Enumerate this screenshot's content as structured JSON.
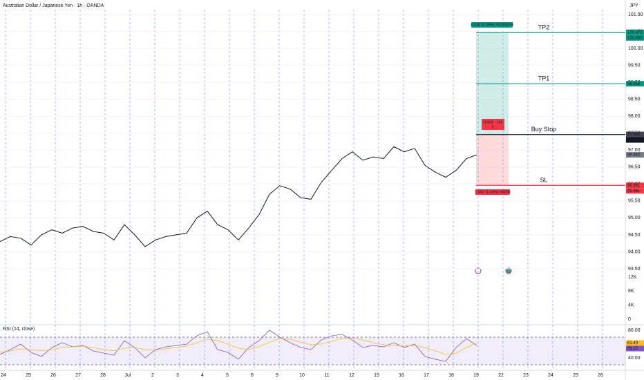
{
  "header": {
    "title": "Australian Dollar / Japanese Yen · 1h · OANDA",
    "currency": "JPY"
  },
  "date_axis": [
    "24",
    "25",
    "26",
    "27",
    "28",
    "Jul",
    "2",
    "3",
    "4",
    "5",
    "8",
    "9",
    "10",
    "11",
    "12",
    "15",
    "16",
    "17",
    "18",
    "19",
    "22",
    "23",
    "24",
    "25",
    "26"
  ],
  "chart_data": [
    {
      "type": "line",
      "series": [
        {
          "color": "#131722",
          "values": [
            94.3,
            94.45,
            94.4,
            94.2,
            94.5,
            94.65,
            94.55,
            94.7,
            94.75,
            94.6,
            94.55,
            94.35,
            94.8,
            94.5,
            94.15,
            94.35,
            94.45,
            94.5,
            94.55,
            95.0,
            95.2,
            94.8,
            94.65,
            94.35,
            94.7,
            95.1,
            95.7,
            95.95,
            95.85,
            95.6,
            95.55,
            96.05,
            96.4,
            96.75,
            96.95,
            96.7,
            96.8,
            96.75,
            97.1,
            96.95,
            97.05,
            96.55,
            96.35,
            96.2,
            96.4,
            96.75,
            96.86
          ]
        }
      ],
      "ylim": [
        93.5,
        101
      ],
      "yticks": [
        {
          "value": 101,
          "label": "101.00"
        },
        {
          "value": 100.5,
          "label": "100.50"
        },
        {
          "value": 100,
          "label": "100.00"
        },
        {
          "value": 99.5,
          "label": "99.50"
        },
        {
          "value": 99,
          "label": "99.00"
        },
        {
          "value": 98.5,
          "label": "98.50"
        },
        {
          "value": 98,
          "label": "98.00"
        },
        {
          "value": 97.5,
          "label": "97.50"
        },
        {
          "value": 97,
          "label": "97.00"
        },
        {
          "value": 96.5,
          "label": "96.50"
        },
        {
          "value": 96,
          "label": "96.00"
        },
        {
          "value": 95.5,
          "label": "95.50"
        },
        {
          "value": 95,
          "label": "95.00"
        },
        {
          "value": 94.5,
          "label": "94.50"
        },
        {
          "value": 94,
          "label": "94.00"
        },
        {
          "value": 93.5,
          "label": "93.50"
        }
      ],
      "levels": [
        {
          "name": "TP2",
          "value": 100.465,
          "color": "#089981"
        },
        {
          "name": "TP1",
          "value": 98.958,
          "color": "#089981"
        },
        {
          "name": "Buy Stop",
          "value": 97.459,
          "color": "#131722"
        },
        {
          "name": "SL",
          "value": 95.961,
          "color": "#f23645"
        }
      ],
      "price_tags": [
        {
          "value": 100.473,
          "color": "#089981"
        },
        {
          "value": 100.465,
          "color": "#089981"
        },
        {
          "value": 98.958,
          "color": "#089981"
        },
        {
          "value": 97.463,
          "color": "#434651"
        },
        {
          "value": 97.459,
          "color": "#131722"
        },
        {
          "value": 96.86,
          "label": "96.860",
          "color": "#787b86"
        },
        {
          "value": 95.961,
          "color": "#f23645"
        },
        {
          "value": 95.961,
          "color": "#f23645"
        }
      ],
      "position": {
        "profit_label": "3.010 (3.09%) 302003.99",
        "entry_label": "-0.603 · 131",
        "entry_sublabel": "2",
        "loss_label": "1.502 (1.54%) 99000"
      },
      "volume_axis": {
        "ylim": [
          0,
          12000
        ],
        "yticks": [
          {
            "value": 12000,
            "label": "12K"
          },
          {
            "value": 8000,
            "label": "8K"
          },
          {
            "value": 4000,
            "label": "4K"
          },
          0
        ]
      }
    },
    {
      "type": "line",
      "title": "RSI (14, close)",
      "series": [
        {
          "color": "#7e57c2",
          "values": [
            45,
            52,
            60,
            48,
            42,
            55,
            62,
            56,
            58,
            50,
            47,
            44,
            65,
            55,
            40,
            52,
            56,
            58,
            60,
            72,
            78,
            52,
            48,
            38,
            55,
            65,
            80,
            70,
            62,
            55,
            52,
            66,
            72,
            74,
            66,
            55,
            58,
            56,
            62,
            55,
            60,
            42,
            38,
            35,
            55,
            68,
            58.13
          ]
        },
        {
          "color": "#f7b924",
          "values": [
            48,
            50,
            53,
            52,
            50,
            52,
            55,
            56,
            57,
            55,
            52,
            50,
            54,
            55,
            52,
            51,
            53,
            55,
            57,
            62,
            67,
            65,
            60,
            54,
            52,
            56,
            63,
            68,
            67,
            63,
            59,
            60,
            64,
            68,
            69,
            66,
            62,
            59,
            58,
            57,
            58,
            55,
            50,
            45,
            47,
            55,
            61.49
          ]
        }
      ],
      "ylim": [
        30,
        80
      ],
      "band": [
        30,
        70
      ],
      "yticks": [
        {
          "value": 80,
          "label": "80.00"
        },
        {
          "value": 60,
          "label": "60.00"
        },
        {
          "value": 40,
          "label": "40.00"
        }
      ]
    }
  ]
}
